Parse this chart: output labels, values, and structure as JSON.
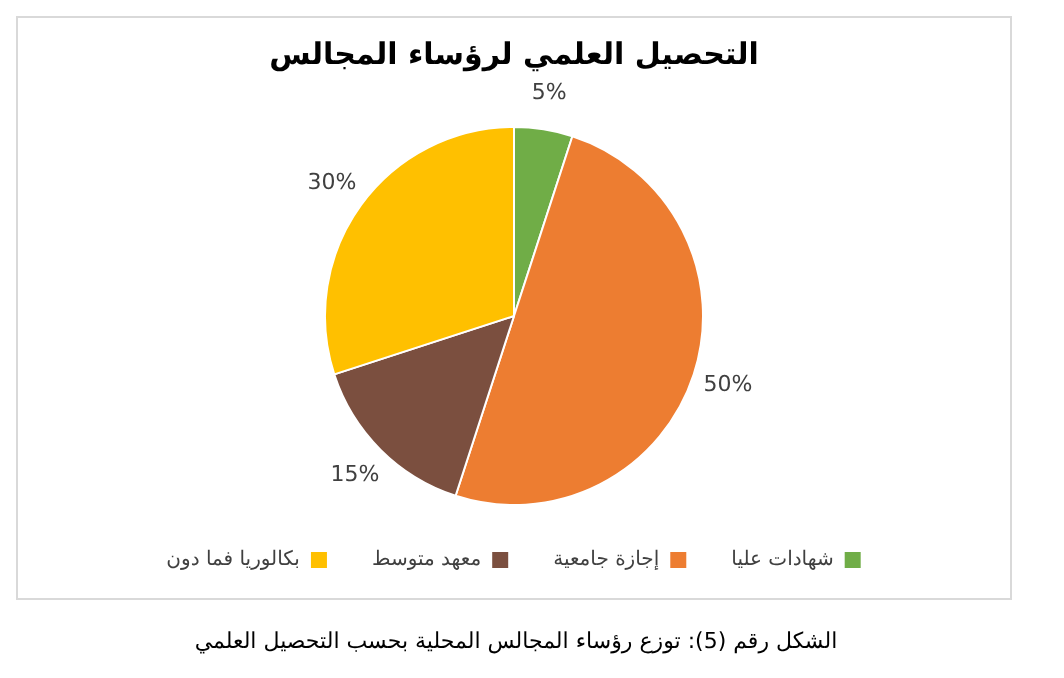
{
  "chart_data": {
    "type": "pie",
    "title": "التحصيل العلمي لرؤساء المجالس",
    "categories": [
      "شهادات عليا",
      "إجازة جامعية",
      "معهد متوسط",
      "بكالوريا فما دون"
    ],
    "values": [
      5,
      50,
      15,
      30
    ],
    "value_labels": [
      "5%",
      "50%",
      "15%",
      "30%"
    ],
    "colors": [
      "#70ad47",
      "#ed7d31",
      "#7b4f3f",
      "#ffc000"
    ],
    "legend": "bottom",
    "annotations": [
      "الشكل رقم (5): توزع رؤساء المجالس المحلية بحسب التحصيل العلمي"
    ]
  }
}
